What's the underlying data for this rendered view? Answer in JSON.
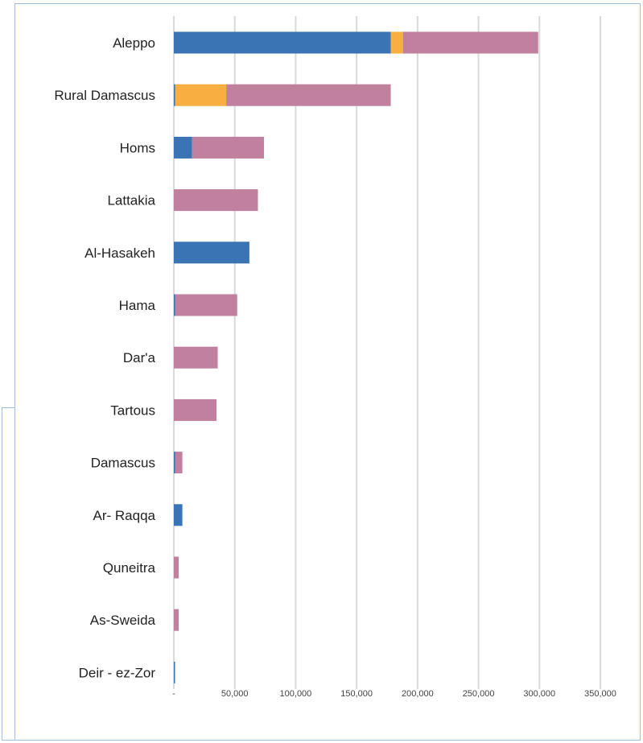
{
  "chart_data": {
    "type": "bar",
    "orientation": "horizontal",
    "stacked": true,
    "categories": [
      "Aleppo",
      "Rural Damascus",
      "Homs",
      "Lattakia",
      "Al-Hasakeh",
      "Hama",
      "Dar'a",
      "Tartous",
      "Damascus",
      "Ar- Raqqa",
      "Quneitra",
      "As-Sweida",
      "Deir - ez-Zor"
    ],
    "series": [
      {
        "color": "#3a74b4",
        "values": [
          178000,
          1000,
          15000,
          0,
          62000,
          1000,
          0,
          0,
          1000,
          7000,
          0,
          0,
          1000
        ]
      },
      {
        "color": "#f9ae42",
        "values": [
          10000,
          42000,
          0,
          0,
          0,
          0,
          0,
          0,
          0,
          0,
          0,
          0,
          0
        ]
      },
      {
        "color": "#c0809e",
        "values": [
          111000,
          135000,
          59000,
          69000,
          0,
          51000,
          36000,
          35000,
          6000,
          0,
          4000,
          4000,
          0
        ]
      }
    ],
    "xlim": [
      0,
      350000
    ],
    "xticks": [
      0,
      50000,
      100000,
      150000,
      200000,
      250000,
      300000,
      350000
    ],
    "xtick_labels": [
      "-",
      "50,000",
      "100,000",
      "150,000",
      "200,000",
      "250,000",
      "300,000",
      "350,000"
    ],
    "grid": true,
    "legend": "none"
  }
}
